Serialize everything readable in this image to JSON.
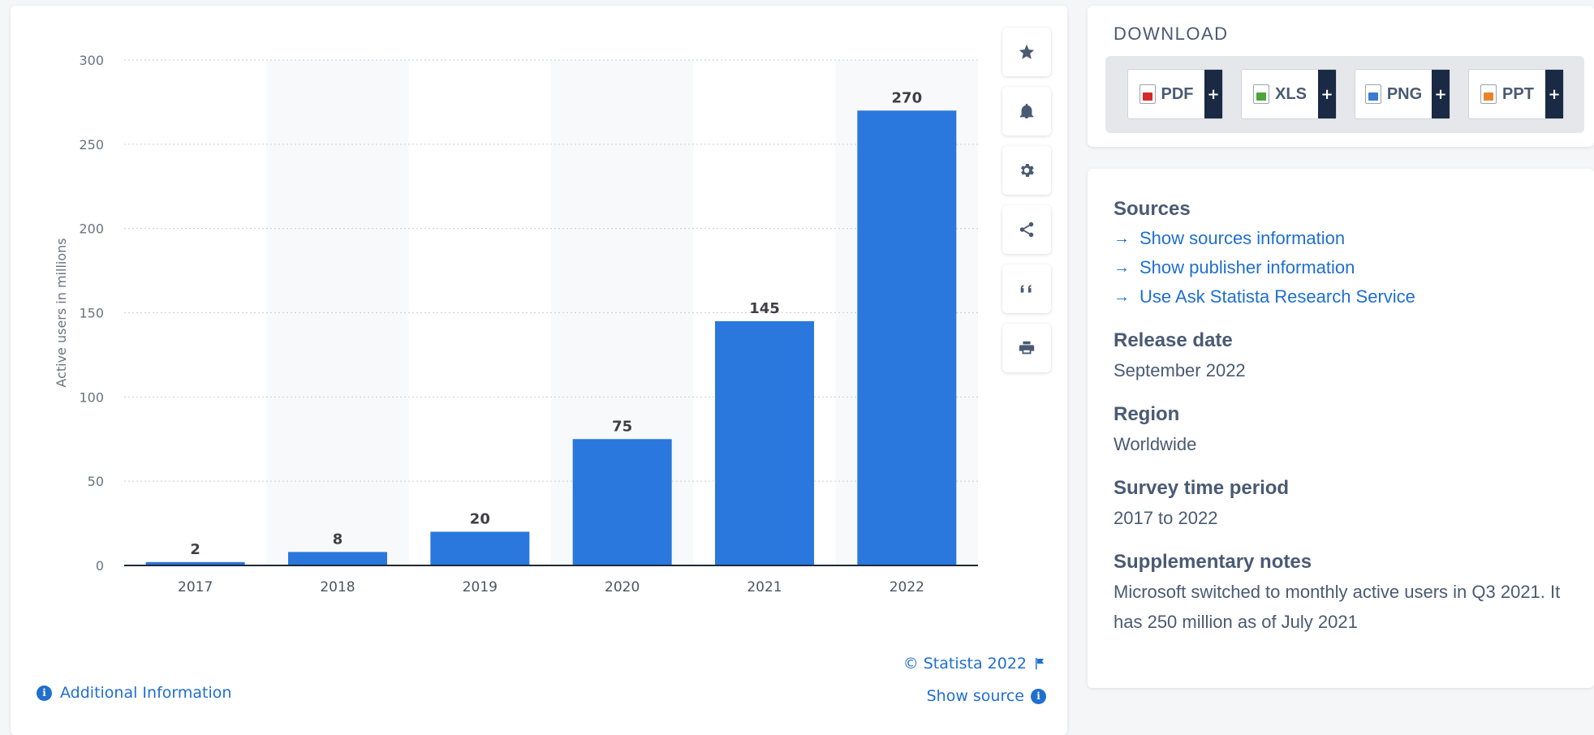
{
  "chart_data": {
    "type": "bar",
    "categories": [
      "2017",
      "2018",
      "2019",
      "2020",
      "2021",
      "2022"
    ],
    "values": [
      2,
      8,
      20,
      75,
      145,
      270
    ],
    "data_labels": [
      "2",
      "8",
      "20",
      "75",
      "145",
      "270"
    ],
    "ylabel": "Active users in millions",
    "xlabel": "",
    "ylim": [
      0,
      300
    ],
    "yticks": [
      0,
      50,
      100,
      150,
      200,
      250,
      300
    ],
    "grid": true,
    "legend": "none",
    "bar_color": "#2a77de"
  },
  "chart_footer": {
    "copyright": "© Statista 2022",
    "show_source": "Show source",
    "additional_info": "Additional Information"
  },
  "tool_icons": [
    "star-icon",
    "bell-icon",
    "gear-icon",
    "share-icon",
    "quote-icon",
    "print-icon"
  ],
  "download": {
    "title": "DOWNLOAD",
    "buttons": [
      {
        "label": "PDF",
        "plus": "+",
        "color": "#d42a2a"
      },
      {
        "label": "XLS",
        "plus": "+",
        "color": "#4ea43a"
      },
      {
        "label": "PNG",
        "plus": "+",
        "color": "#3d7bd0"
      },
      {
        "label": "PPT",
        "plus": "+",
        "color": "#e8842a"
      }
    ]
  },
  "sources": {
    "title": "Sources",
    "links": [
      "Show sources information",
      "Show publisher information",
      "Use Ask Statista Research Service"
    ]
  },
  "release": {
    "title": "Release date",
    "value": "September 2022"
  },
  "region": {
    "title": "Region",
    "value": "Worldwide"
  },
  "survey": {
    "title": "Survey time period",
    "value": "2017 to 2022"
  },
  "notes": {
    "title": "Supplementary notes",
    "value": "Microsoft switched to monthly active users in Q3 2021. It has 250 million as of July 2021"
  },
  "colors": {
    "accent": "#1f6fcf",
    "text": "#4a5a73",
    "dark": "#1a2a44"
  }
}
